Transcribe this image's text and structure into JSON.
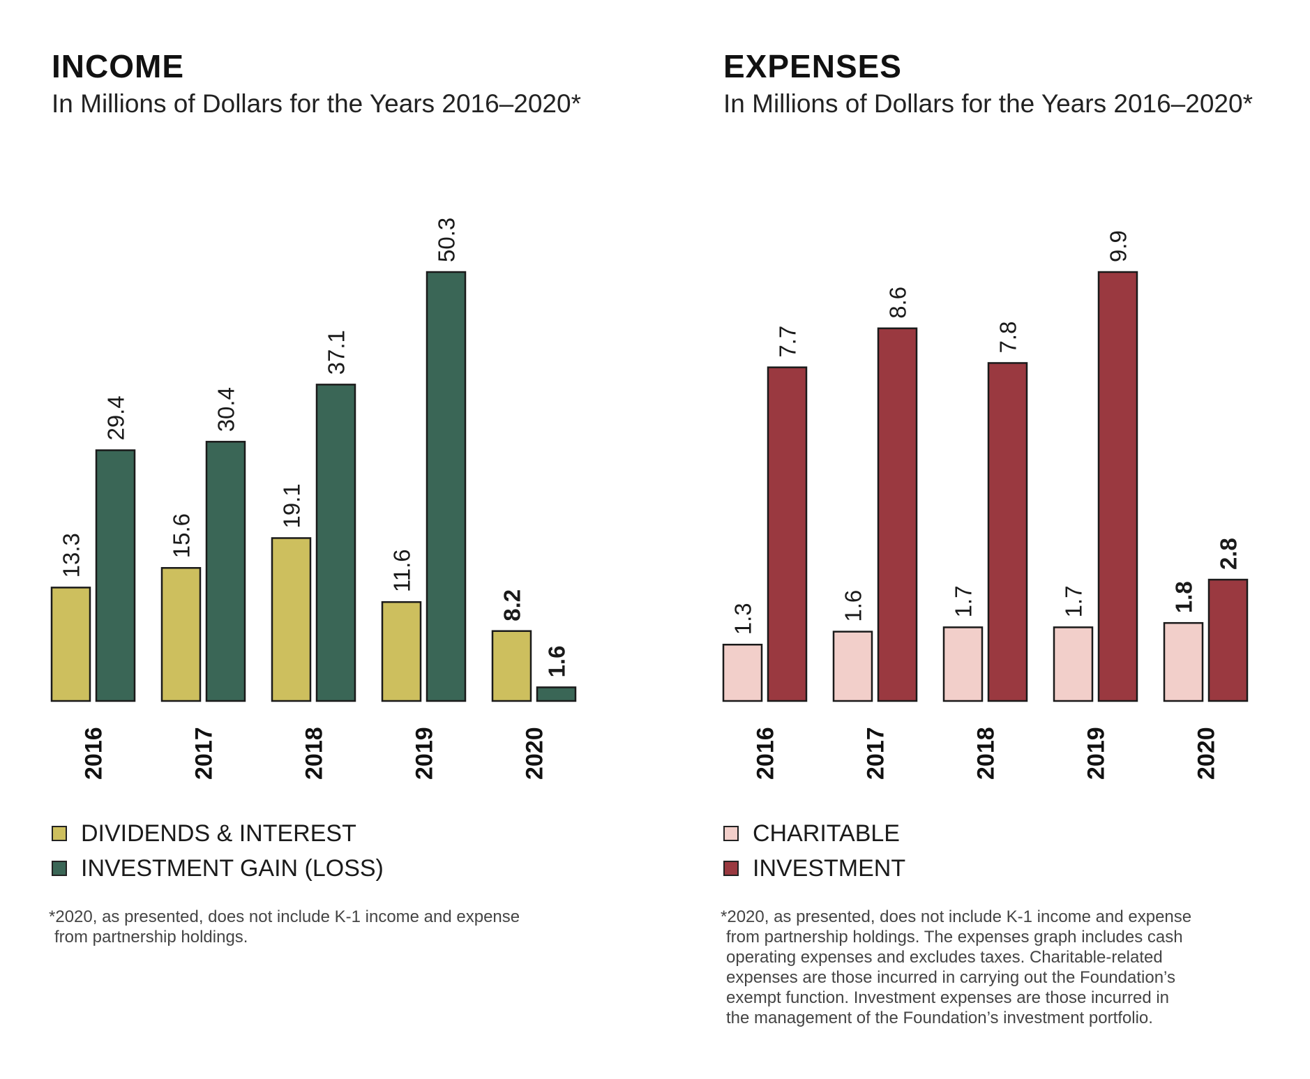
{
  "colors": {
    "dividends": "#cdbf5e",
    "investment_gain": "#3a6656",
    "charitable": "#f2cfca",
    "investment": "#9a3940",
    "stroke": "#1a1a1a"
  },
  "income": {
    "title": "INCOME",
    "subtitle": "In Millions of Dollars for the Years 2016–2020*",
    "legend": [
      "DIVIDENDS & INTEREST",
      "INVESTMENT GAIN (LOSS)"
    ],
    "footnote": [
      "*2020, as presented, does not include K-1 income and expense",
      "from partnership holdings."
    ]
  },
  "expenses": {
    "title": "EXPENSES",
    "subtitle": "In Millions of Dollars for the Years 2016–2020*",
    "legend": [
      "CHARITABLE",
      "INVESTMENT"
    ],
    "footnote": [
      "*2020, as presented, does not include K-1 income and expense",
      "from partnership holdings. The expenses graph includes cash",
      "operating expenses and excludes taxes. Charitable-related",
      "expenses are those incurred in carrying out the Foundation’s",
      "exempt function. Investment expenses are those incurred in",
      "the management of the Foundation’s investment portfolio."
    ]
  },
  "chart_data": [
    {
      "type": "bar",
      "title": "INCOME",
      "subtitle": "In Millions of Dollars for the Years 2016–2020*",
      "categories": [
        "2016",
        "2017",
        "2018",
        "2019",
        "2020"
      ],
      "series": [
        {
          "name": "DIVIDENDS & INTEREST",
          "values": [
            13.3,
            15.6,
            19.1,
            11.6,
            8.2
          ],
          "labels": [
            "13.3",
            "15.6",
            "19.1",
            "11.6",
            "8.2"
          ]
        },
        {
          "name": "INVESTMENT GAIN (LOSS)",
          "values": [
            29.4,
            30.4,
            37.1,
            50.3,
            1.6
          ],
          "labels": [
            "29.4",
            "30.4",
            "37.1",
            "50.3",
            "1.6"
          ]
        }
      ],
      "bold_category": "2020",
      "xlabel": "",
      "ylabel": "",
      "ylim": [
        0,
        50.3
      ],
      "grid": false,
      "legend": "bottom-left"
    },
    {
      "type": "bar",
      "title": "EXPENSES",
      "subtitle": "In Millions of Dollars for the Years 2016–2020*",
      "categories": [
        "2016",
        "2017",
        "2018",
        "2019",
        "2020"
      ],
      "series": [
        {
          "name": "CHARITABLE",
          "values": [
            1.3,
            1.6,
            1.7,
            1.7,
            1.8
          ],
          "labels": [
            "1.3",
            "1.6",
            "1.7",
            "1.7",
            "1.8"
          ]
        },
        {
          "name": "INVESTMENT",
          "values": [
            7.7,
            8.6,
            7.8,
            9.9,
            2.8
          ],
          "labels": [
            "7.7",
            "8.6",
            "7.8",
            "9.9",
            "2.8"
          ]
        }
      ],
      "bold_category": "2020",
      "xlabel": "",
      "ylabel": "",
      "ylim": [
        0,
        9.9
      ],
      "grid": false,
      "legend": "bottom-left"
    }
  ]
}
